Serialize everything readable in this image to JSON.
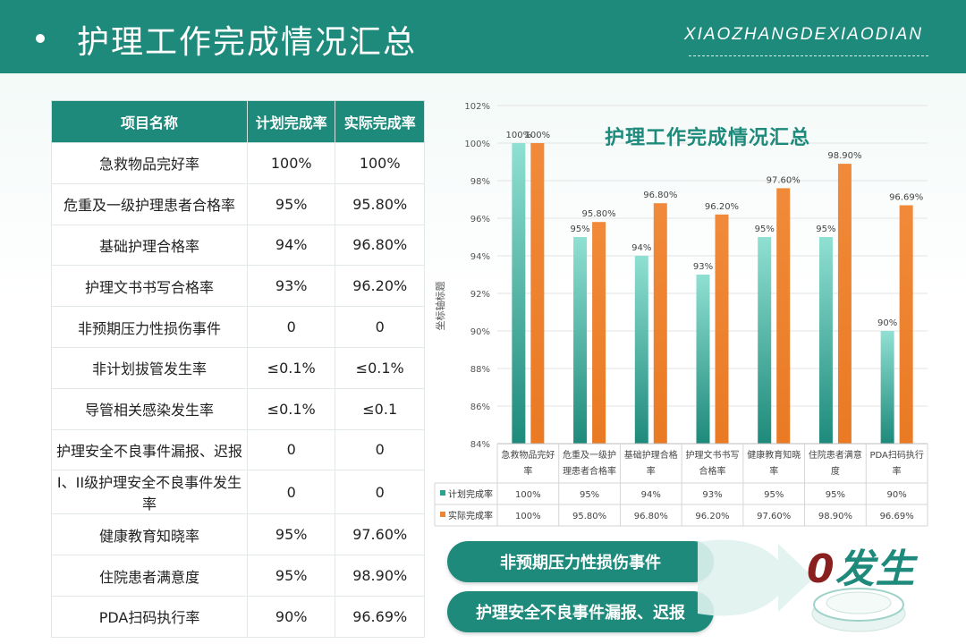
{
  "header": {
    "title": "护理工作完成情况汇总",
    "brand": "XIAOZHANGDEXIAODIAN"
  },
  "table": {
    "headers": [
      "项目名称",
      "计划完成率",
      "实际完成率"
    ],
    "rows": [
      [
        "急救物品完好率",
        "100%",
        "100%"
      ],
      [
        "危重及一级护理患者合格率",
        "95%",
        "95.80%"
      ],
      [
        "基础护理合格率",
        "94%",
        "96.80%"
      ],
      [
        "护理文书书写合格率",
        "93%",
        "96.20%"
      ],
      [
        "非预期压力性损伤事件",
        "0",
        "0"
      ],
      [
        "非计划拔管发生率",
        "≤0.1%",
        "≤0.1%"
      ],
      [
        "导管相关感染发生率",
        "≤0.1%",
        "≤0.1"
      ],
      [
        "护理安全不良事件漏报、迟报",
        "0",
        "0"
      ],
      [
        "I、II级护理安全不良事件发生率",
        "0",
        "0"
      ],
      [
        "健康教育知晓率",
        "95%",
        "97.60%"
      ],
      [
        "住院患者满意度",
        "95%",
        "98.90%"
      ],
      [
        "PDA扫码执行率",
        "90%",
        "96.69%"
      ]
    ]
  },
  "chart_data": {
    "type": "bar",
    "title": "护理工作完成情况汇总",
    "ylabel": "坐标轴标题",
    "ylim": [
      84,
      102
    ],
    "yticks": [
      84,
      86,
      88,
      90,
      92,
      94,
      96,
      98,
      100,
      102
    ],
    "ytick_labels": [
      "84%",
      "86%",
      "88%",
      "90%",
      "92%",
      "94%",
      "96%",
      "98%",
      "100%",
      "102%"
    ],
    "categories": [
      [
        "急救物品完好",
        "率"
      ],
      [
        "危重及一级护",
        "理患者合格率"
      ],
      [
        "基础护理合格",
        "率"
      ],
      [
        "护理文书书写",
        "合格率"
      ],
      [
        "健康教育知晓",
        "率"
      ],
      [
        "住院患者满意",
        "度"
      ],
      [
        "PDA扫码执行",
        "率"
      ]
    ],
    "series": [
      {
        "name": "计划完成率",
        "color": "#2aa38d",
        "values": [
          100,
          95,
          94,
          93,
          95,
          95,
          90
        ],
        "labels": [
          "100%",
          "95%",
          "94%",
          "93%",
          "95%",
          "95%",
          "90%"
        ]
      },
      {
        "name": "实际完成率",
        "color": "#ee8535",
        "values": [
          100,
          95.8,
          96.8,
          96.2,
          97.6,
          98.9,
          96.69
        ],
        "labels": [
          "100%",
          "95.80%",
          "96.80%",
          "96.20%",
          "97.60%",
          "98.90%",
          "96.69%"
        ]
      }
    ],
    "data_table": true,
    "legend": "data-table"
  },
  "callouts": {
    "item1": "非预期压力性损伤事件",
    "item2": "护理安全不良事件漏报、迟报",
    "zero": "0",
    "result": "发生"
  },
  "colors": {
    "primary": "#1e8a7b",
    "plan": "#2aa38d",
    "actual": "#ee8535"
  }
}
